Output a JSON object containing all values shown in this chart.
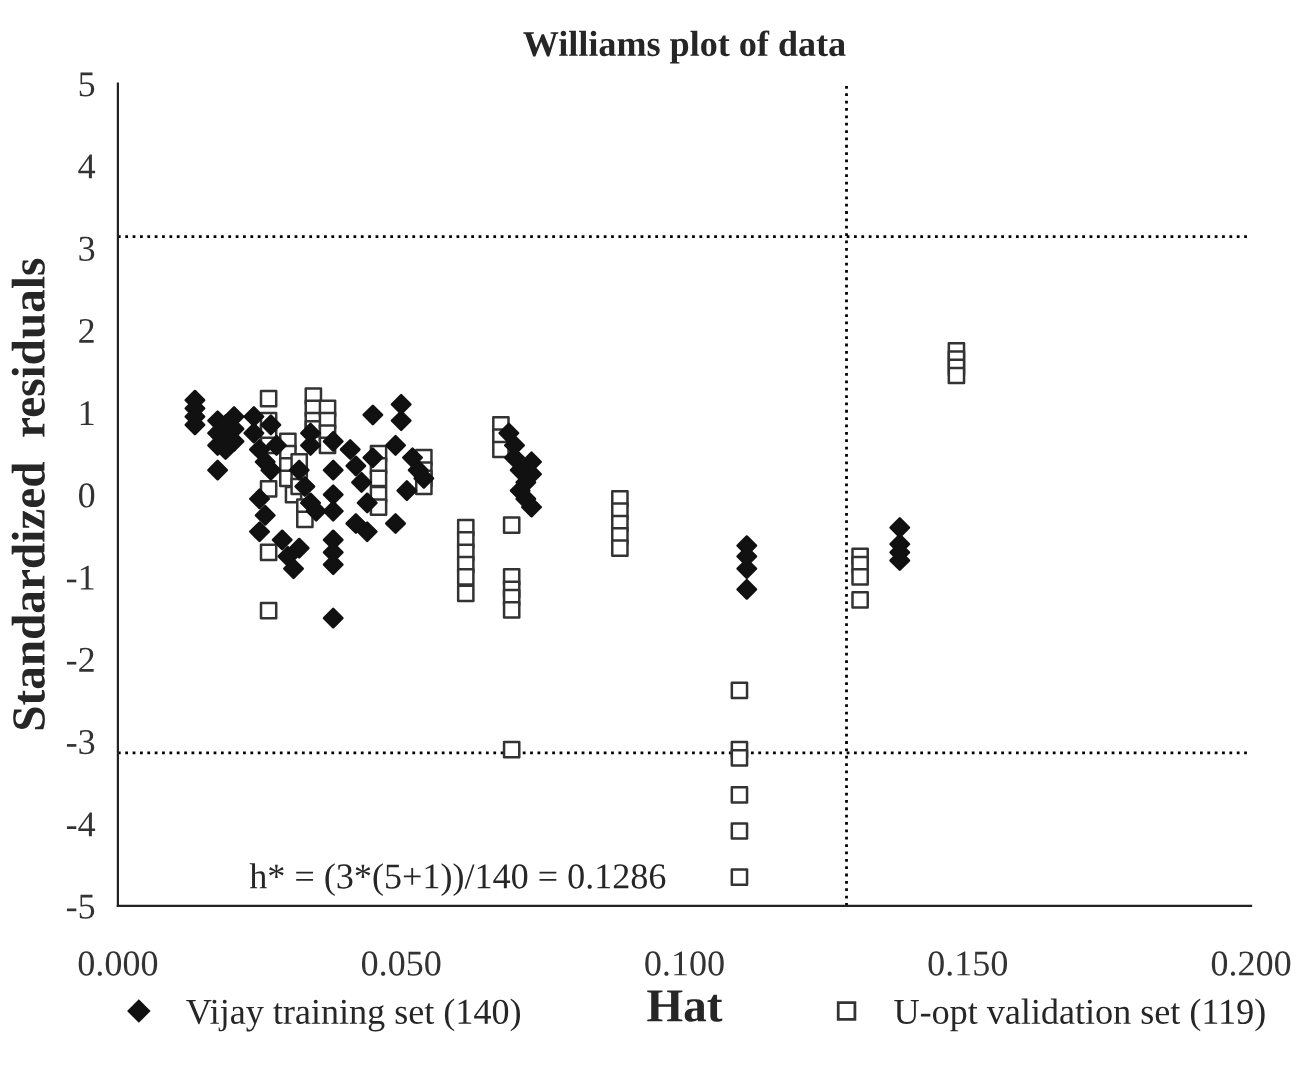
{
  "chart_data": {
    "type": "scatter",
    "title": "Williams plot of data",
    "xlabel": "Hat",
    "ylabel": "Standardized  residuals",
    "xlim": [
      0,
      0.2
    ],
    "ylim": [
      -5,
      5
    ],
    "xticks": [
      {
        "value": 0,
        "label": "0.000"
      },
      {
        "value": 0.05,
        "label": "0.050"
      },
      {
        "value": 0.1,
        "label": "0.100"
      },
      {
        "value": 0.15,
        "label": "0.150"
      },
      {
        "value": 0.2,
        "label": "0.200"
      }
    ],
    "yticks": [
      -5,
      -4,
      -3,
      -2,
      -1,
      0,
      1,
      2,
      3,
      4,
      5
    ],
    "grid": false,
    "legend": "bottom",
    "ref_lines": [
      {
        "axis": "y",
        "value": 3.14,
        "color": "#000000",
        "line_style": "dotted"
      },
      {
        "axis": "y",
        "value": -3.14,
        "color": "#000000",
        "line_style": "dotted"
      },
      {
        "axis": "x",
        "value": 0.1286,
        "color": "#000000",
        "line_style": "dotted"
      }
    ],
    "annotations": [
      "h* = (3*(5+1))/140 = 0.1286"
    ],
    "series": [
      {
        "name": "Vijay training set (140)",
        "color": "#111111",
        "marker": "diamond",
        "x": [
          0.0136,
          0.0136,
          0.0136,
          0.0136,
          0.0176,
          0.0176,
          0.0176,
          0.019,
          0.019,
          0.019,
          0.0205,
          0.0205,
          0.0205,
          0.0176,
          0.024,
          0.024,
          0.025,
          0.026,
          0.027,
          0.028,
          0.027,
          0.034,
          0.025,
          0.026,
          0.025,
          0.029,
          0.03,
          0.031,
          0.032,
          0.032,
          0.033,
          0.034,
          0.035,
          0.034,
          0.038,
          0.038,
          0.038,
          0.038,
          0.038,
          0.038,
          0.038,
          0.038,
          0.045,
          0.041,
          0.042,
          0.043,
          0.044,
          0.042,
          0.044,
          0.045,
          0.05,
          0.05,
          0.049,
          0.052,
          0.053,
          0.054,
          0.051,
          0.049,
          0.069,
          0.07,
          0.07,
          0.071,
          0.072,
          0.071,
          0.072,
          0.073,
          0.073,
          0.073,
          0.111,
          0.111,
          0.111,
          0.111,
          0.138,
          0.138,
          0.138,
          0.138
        ],
        "values": [
          1.15,
          1.05,
          0.95,
          0.85,
          0.9,
          0.75,
          0.6,
          0.85,
          0.7,
          0.55,
          0.95,
          0.8,
          0.65,
          0.3,
          0.95,
          0.75,
          0.55,
          0.4,
          0.85,
          0.6,
          0.3,
          0.6,
          -0.05,
          -0.25,
          -0.45,
          -0.55,
          -0.75,
          -0.9,
          -0.65,
          0.3,
          0.1,
          -0.1,
          -0.2,
          0.75,
          0.65,
          0.3,
          0.0,
          -0.2,
          -0.55,
          -0.7,
          -0.85,
          -1.5,
          0.97,
          0.55,
          0.35,
          0.15,
          -0.1,
          -0.35,
          -0.45,
          0.45,
          1.1,
          0.9,
          0.6,
          0.45,
          0.3,
          0.2,
          0.05,
          -0.35,
          0.75,
          0.6,
          0.45,
          0.3,
          0.15,
          0.05,
          -0.05,
          -0.15,
          0.4,
          0.25,
          -0.62,
          -0.75,
          -0.9,
          -1.15,
          -0.4,
          -0.6,
          -0.7,
          -0.8
        ]
      },
      {
        "name": "U-opt validation set (119)",
        "color": "#333333",
        "marker": "square",
        "x": [
          0.0676,
          0.0676,
          0.0676,
          0.0695,
          0.0695,
          0.0695,
          0.0695,
          0.0695,
          0.0695,
          0.0886,
          0.0886,
          0.0886,
          0.0886,
          0.0886,
          0.1097,
          0.1097,
          0.1097,
          0.1097,
          0.1097,
          0.1097,
          0.131,
          0.131,
          0.131,
          0.131,
          0.148,
          0.148,
          0.148,
          0.148,
          0.0266,
          0.0266,
          0.0266,
          0.0266,
          0.0266,
          0.0266,
          0.0266,
          0.03,
          0.03,
          0.03,
          0.03,
          0.031,
          0.032,
          0.032,
          0.032,
          0.033,
          0.033,
          0.0345,
          0.0345,
          0.0345,
          0.0345,
          0.037,
          0.037,
          0.037,
          0.037,
          0.046,
          0.046,
          0.046,
          0.046,
          0.046,
          0.054,
          0.054,
          0.054,
          0.054,
          0.0614,
          0.0614,
          0.0614,
          0.0614,
          0.0614,
          0.0614
        ],
        "values": [
          0.85,
          0.7,
          0.55,
          -0.37,
          -1.0,
          -1.15,
          -1.25,
          -1.4,
          -3.1,
          -0.05,
          -0.2,
          -0.35,
          -0.5,
          -0.65,
          -2.38,
          -3.1,
          -3.2,
          -3.65,
          -4.09,
          -4.65,
          -0.75,
          -0.85,
          -1.0,
          -1.28,
          1.75,
          1.65,
          1.55,
          1.45,
          1.17,
          0.9,
          0.75,
          0.6,
          0.07,
          -0.7,
          -1.41,
          0.65,
          0.5,
          0.35,
          0.2,
          0.0,
          0.4,
          0.2,
          0.1,
          -0.15,
          -0.3,
          1.2,
          1.05,
          0.9,
          0.8,
          1.05,
          0.9,
          0.75,
          0.6,
          0.5,
          0.35,
          0.2,
          0.0,
          -0.15,
          0.45,
          0.3,
          0.2,
          0.1,
          -0.4,
          -0.55,
          -0.7,
          -0.85,
          -1.0,
          -1.2
        ]
      }
    ]
  }
}
